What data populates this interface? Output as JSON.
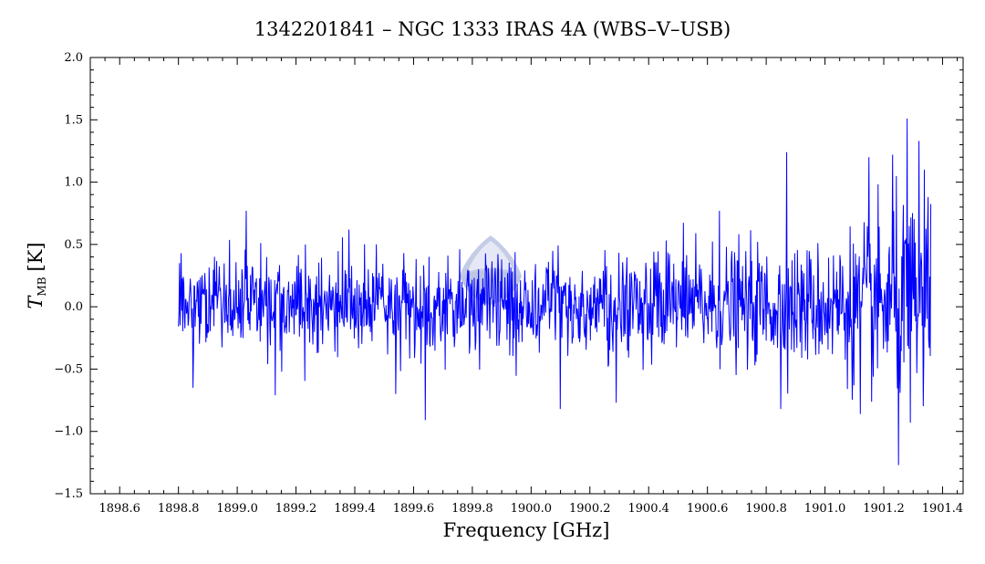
{
  "chart_data": {
    "type": "line",
    "title": "1342201841 – NGC 1333 IRAS 4A (WBS–V–USB)",
    "xlabel": "Frequency [GHz]",
    "ylabel_main": "T",
    "ylabel_sub": "MB",
    "ylabel_unit": "[K]",
    "xlim": [
      1898.5,
      1901.47
    ],
    "ylim": [
      -1.5,
      2.0
    ],
    "x_ticks": [
      1898.6,
      1898.8,
      1899.0,
      1899.2,
      1899.4,
      1899.6,
      1899.8,
      1900.0,
      1900.2,
      1900.4,
      1900.6,
      1900.8,
      1901.0,
      1901.2,
      1901.4
    ],
    "x_tick_labels": [
      "1898.6",
      "1898.8",
      "1899.0",
      "1899.2",
      "1899.4",
      "1899.6",
      "1899.8",
      "1900.0",
      "1900.2",
      "1900.4",
      "1900.6",
      "1900.8",
      "1901.0",
      "1901.2",
      "1901.4"
    ],
    "y_ticks": [
      -1.5,
      -1.0,
      -0.5,
      0.0,
      0.5,
      1.0,
      1.5,
      2.0
    ],
    "y_tick_labels": [
      "−1.5",
      "−1.0",
      "−0.5",
      "0.0",
      "0.5",
      "1.0",
      "1.5",
      "2.0"
    ],
    "grid": false,
    "line_color": "#0000ff",
    "series": [
      {
        "x_start": 1898.8,
        "x_end": 1901.36,
        "n_points": 1400,
        "seed": 1842,
        "notable_points": [
          {
            "x": 1898.81,
            "y": 0.43
          },
          {
            "x": 1898.85,
            "y": -0.65
          },
          {
            "x": 1899.03,
            "y": 0.77
          },
          {
            "x": 1899.13,
            "y": -0.71
          },
          {
            "x": 1899.38,
            "y": 0.62
          },
          {
            "x": 1899.54,
            "y": -0.7
          },
          {
            "x": 1899.64,
            "y": -0.91
          },
          {
            "x": 1899.9,
            "y": 0.38
          },
          {
            "x": 1900.1,
            "y": -0.82
          },
          {
            "x": 1900.29,
            "y": 0.82
          },
          {
            "x": 1900.29,
            "y": -0.77
          },
          {
            "x": 1900.64,
            "y": 0.77
          },
          {
            "x": 1900.87,
            "y": 1.24
          },
          {
            "x": 1900.85,
            "y": -0.82
          },
          {
            "x": 1901.15,
            "y": 1.2
          },
          {
            "x": 1901.12,
            "y": -0.86
          },
          {
            "x": 1901.23,
            "y": 1.22
          },
          {
            "x": 1901.25,
            "y": -1.27
          },
          {
            "x": 1901.28,
            "y": 1.51
          },
          {
            "x": 1901.32,
            "y": 1.33
          },
          {
            "x": 1901.29,
            "y": -0.93
          },
          {
            "x": 1901.35,
            "y": 0.88
          }
        ]
      }
    ]
  }
}
